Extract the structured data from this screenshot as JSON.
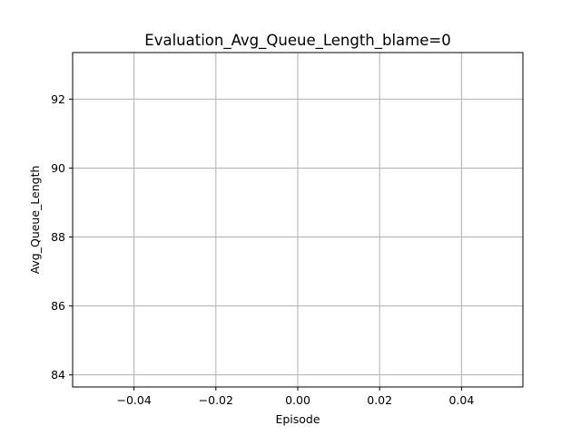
{
  "chart_data": {
    "type": "line",
    "title": "Evaluation_Avg_Queue_Length_blame=0",
    "xlabel": "Episode",
    "ylabel": "Avg_Queue_Length",
    "xlim": [
      -0.055,
      0.055
    ],
    "ylim": [
      83.65,
      93.35
    ],
    "xticks": [
      -0.04,
      -0.02,
      0.0,
      0.02,
      0.04
    ],
    "xtick_labels": [
      "−0.04",
      "−0.02",
      "0.00",
      "0.02",
      "0.04"
    ],
    "yticks": [
      84,
      86,
      88,
      90,
      92
    ],
    "ytick_labels": [
      "84",
      "86",
      "88",
      "90",
      "92"
    ],
    "grid": true,
    "series": []
  }
}
